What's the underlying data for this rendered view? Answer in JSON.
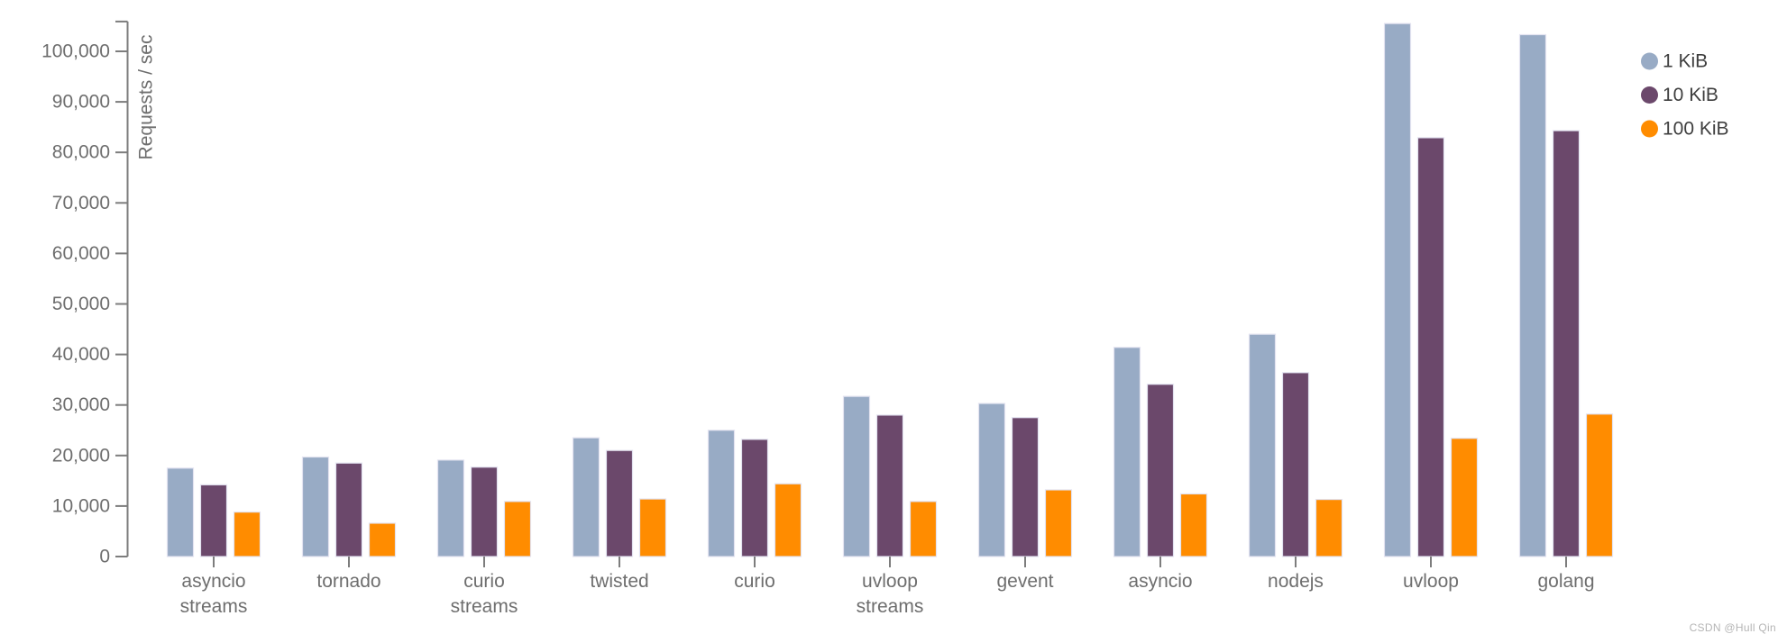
{
  "chart_data": {
    "type": "bar",
    "title": "",
    "xlabel": "",
    "ylabel": "Requests / sec",
    "categories": [
      "asyncio\nstreams",
      "tornado",
      "curio\nstreams",
      "twisted",
      "curio",
      "uvloop\nstreams",
      "gevent",
      "asyncio",
      "nodejs",
      "uvloop",
      "golang"
    ],
    "series": [
      {
        "name": "1 KiB",
        "color": "#98abc5",
        "values": [
          17500,
          19700,
          19100,
          23500,
          25000,
          31700,
          30300,
          41400,
          44000,
          105500,
          103300
        ]
      },
      {
        "name": "10 KiB",
        "color": "#6b486b",
        "values": [
          14200,
          18500,
          17700,
          21000,
          23200,
          28000,
          27500,
          34100,
          36400,
          82900,
          84300
        ]
      },
      {
        "name": "100 KiB",
        "color": "#ff8c00",
        "values": [
          8800,
          6600,
          10900,
          11400,
          14400,
          10900,
          13200,
          12400,
          11300,
          23400,
          28200
        ]
      }
    ],
    "ylim": [
      0,
      105900
    ],
    "ytick_step": 10000,
    "ytick_max": 100000,
    "ytick_labels": [
      "0",
      "10,000",
      "20,000",
      "30,000",
      "40,000",
      "50,000",
      "60,000",
      "70,000",
      "80,000",
      "90,000",
      "100,000"
    ],
    "grid": false,
    "legend_position": "top-right"
  },
  "colors": {
    "axis": "#7d7d7d",
    "tick_text": "#6e6e6e",
    "axis_title_text": "#6e6e6e",
    "category_text": "#6e6e6e",
    "legend_text": "#3e3e3e",
    "bar_stroke": "#e3e3f0",
    "watermark_text": "#b5b5b5",
    "background": "#ffffff"
  },
  "watermark": "CSDN @Hull Qin"
}
